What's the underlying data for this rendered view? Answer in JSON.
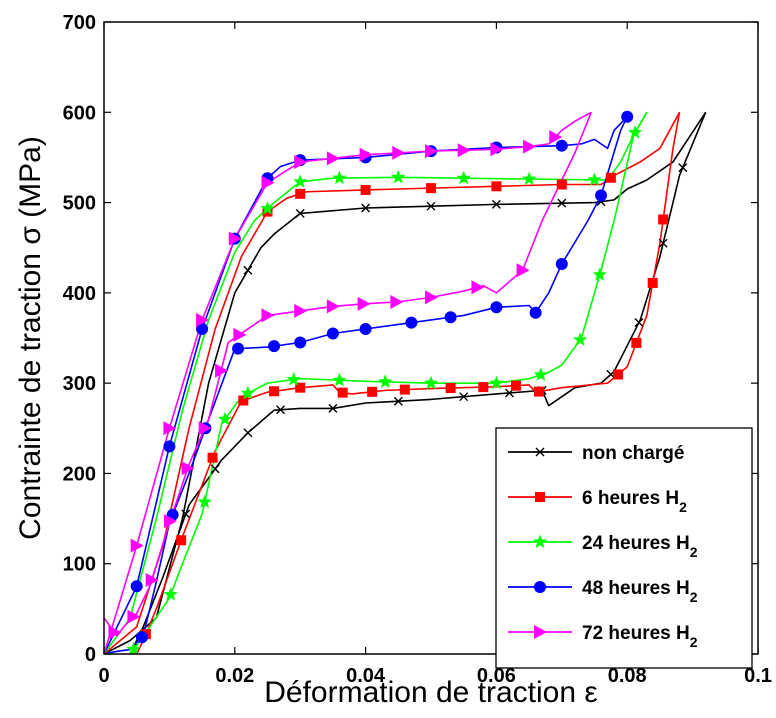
{
  "chart_data": {
    "type": "line",
    "title": "",
    "xlabel": "Déformation de traction ε",
    "ylabel": "Contrainte de traction σ (MPa)",
    "xlim": [
      0,
      0.1
    ],
    "ylim": [
      0,
      700
    ],
    "xticks": [
      0,
      0.02,
      0.04,
      0.06,
      0.08,
      0.1
    ],
    "xtick_labels": [
      "0",
      "0.02",
      "0.04",
      "0.06",
      "0.08",
      "0.1"
    ],
    "yticks": [
      0,
      100,
      200,
      300,
      400,
      500,
      600,
      700
    ],
    "ytick_labels": [
      "0",
      "100",
      "200",
      "300",
      "400",
      "500",
      "600",
      "700"
    ],
    "grid": false,
    "legend_position": "bottom-right",
    "series": [
      {
        "name": "non chargé",
        "legend_main": "non chargé",
        "legend_sub": "",
        "color": "#000000",
        "marker": "x",
        "loading": [
          [
            0,
            0
          ],
          [
            0.004,
            15
          ],
          [
            0.008,
            40
          ],
          [
            0.012,
            150
          ],
          [
            0.016,
            300
          ],
          [
            0.02,
            400
          ],
          [
            0.024,
            450
          ],
          [
            0.026,
            465
          ],
          [
            0.03,
            488
          ],
          [
            0.04,
            494
          ],
          [
            0.05,
            496
          ],
          [
            0.06,
            498
          ],
          [
            0.075,
            500
          ],
          [
            0.078,
            503
          ],
          [
            0.08,
            515
          ],
          [
            0.083,
            525
          ],
          [
            0.087,
            545
          ],
          [
            0.092,
            600
          ]
        ],
        "unloading": [
          [
            0.092,
            600
          ],
          [
            0.088,
            530
          ],
          [
            0.085,
            440
          ],
          [
            0.082,
            370
          ],
          [
            0.078,
            313
          ],
          [
            0.076,
            300
          ],
          [
            0.072,
            295
          ],
          [
            0.068,
            275
          ],
          [
            0.067,
            292
          ],
          [
            0.06,
            288
          ],
          [
            0.05,
            282
          ],
          [
            0.04,
            278
          ],
          [
            0.035,
            272
          ],
          [
            0.03,
            272
          ],
          [
            0.026,
            270
          ],
          [
            0.022,
            245
          ],
          [
            0.018,
            215
          ],
          [
            0.013,
            165
          ],
          [
            0.009,
            85
          ],
          [
            0.006,
            30
          ],
          [
            0.004,
            0
          ]
        ],
        "loading_markers": [
          0.022,
          0.03,
          0.04,
          0.05,
          0.06,
          0.07,
          0.076
        ],
        "unloading_markers": [
          0.0885,
          0.0855,
          0.0818,
          0.0775,
          0.067,
          0.062,
          0.055,
          0.045,
          0.035,
          0.027,
          0.022,
          0.017,
          0.0125
        ]
      },
      {
        "name": "6 heures H2",
        "legend_main": "6 heures H",
        "legend_sub": "2",
        "color": "#ff0000",
        "marker": "s",
        "loading": [
          [
            0,
            0
          ],
          [
            0.005,
            30
          ],
          [
            0.009,
            120
          ],
          [
            0.013,
            250
          ],
          [
            0.017,
            360
          ],
          [
            0.021,
            440
          ],
          [
            0.025,
            490
          ],
          [
            0.028,
            505
          ],
          [
            0.031,
            512
          ],
          [
            0.04,
            514
          ],
          [
            0.05,
            516
          ],
          [
            0.06,
            518
          ],
          [
            0.07,
            520
          ],
          [
            0.076,
            520
          ],
          [
            0.078,
            530
          ],
          [
            0.082,
            545
          ],
          [
            0.085,
            560
          ],
          [
            0.088,
            600
          ]
        ],
        "unloading": [
          [
            0.088,
            600
          ],
          [
            0.087,
            560
          ],
          [
            0.085,
            455
          ],
          [
            0.083,
            375
          ],
          [
            0.08,
            318
          ],
          [
            0.077,
            300
          ],
          [
            0.07,
            295
          ],
          [
            0.066,
            290
          ],
          [
            0.065,
            298
          ],
          [
            0.06,
            296
          ],
          [
            0.05,
            294
          ],
          [
            0.043,
            292
          ],
          [
            0.038,
            288
          ],
          [
            0.036,
            290
          ],
          [
            0.035,
            298
          ],
          [
            0.03,
            295
          ],
          [
            0.025,
            290
          ],
          [
            0.021,
            280
          ],
          [
            0.017,
            225
          ],
          [
            0.012,
            130
          ],
          [
            0.008,
            50
          ],
          [
            0.006,
            15
          ],
          [
            0.005,
            0
          ]
        ],
        "loading_markers": [
          0.025,
          0.03,
          0.04,
          0.05,
          0.06,
          0.07,
          0.0775
        ],
        "unloading_markers": [
          0.0855,
          0.0839,
          0.0814,
          0.0786,
          0.0665,
          0.063,
          0.058,
          0.053,
          0.046,
          0.041,
          0.0365,
          0.03,
          0.026,
          0.0213,
          0.0166,
          0.0118,
          0.0064
        ]
      },
      {
        "name": "24 heures H2",
        "legend_main": "24 heures H",
        "legend_sub": "2",
        "color": "#00ff00",
        "marker": "*",
        "loading": [
          [
            0,
            0
          ],
          [
            0.004,
            40
          ],
          [
            0.008,
            150
          ],
          [
            0.012,
            270
          ],
          [
            0.016,
            370
          ],
          [
            0.02,
            445
          ],
          [
            0.023,
            480
          ],
          [
            0.026,
            500
          ],
          [
            0.03,
            523
          ],
          [
            0.035,
            527
          ],
          [
            0.045,
            528
          ],
          [
            0.055,
            527
          ],
          [
            0.065,
            526
          ],
          [
            0.077,
            525
          ],
          [
            0.079,
            545
          ],
          [
            0.081,
            575
          ],
          [
            0.083,
            600
          ]
        ],
        "unloading": [
          [
            0.083,
            600
          ],
          [
            0.081,
            575
          ],
          [
            0.078,
            480
          ],
          [
            0.076,
            425
          ],
          [
            0.073,
            350
          ],
          [
            0.07,
            320
          ],
          [
            0.068,
            312
          ],
          [
            0.065,
            305
          ],
          [
            0.06,
            300
          ],
          [
            0.05,
            300
          ],
          [
            0.04,
            302
          ],
          [
            0.03,
            305
          ],
          [
            0.025,
            300
          ],
          [
            0.021,
            285
          ],
          [
            0.018,
            255
          ],
          [
            0.015,
            155
          ],
          [
            0.012,
            100
          ],
          [
            0.01,
            62
          ],
          [
            0.007,
            30
          ],
          [
            0.004,
            0
          ]
        ],
        "loading_markers": [
          0.025,
          0.03,
          0.036,
          0.045,
          0.055,
          0.065,
          0.075
        ],
        "unloading_markers": [
          0.0812,
          0.0758,
          0.0728,
          0.0668,
          0.06,
          0.05,
          0.043,
          0.036,
          0.029,
          0.022,
          0.0185,
          0.0154,
          0.0102,
          0.0045
        ]
      },
      {
        "name": "48 heures H2",
        "legend_main": "48 heures H",
        "legend_sub": "2",
        "color": "#0000ff",
        "marker": "o",
        "loading": [
          [
            0,
            0
          ],
          [
            0.005,
            75
          ],
          [
            0.01,
            230
          ],
          [
            0.015,
            360
          ],
          [
            0.02,
            460
          ],
          [
            0.025,
            527
          ],
          [
            0.027,
            540
          ],
          [
            0.03,
            547
          ],
          [
            0.04,
            550
          ],
          [
            0.05,
            557
          ],
          [
            0.06,
            561
          ],
          [
            0.07,
            563
          ],
          [
            0.073,
            565
          ],
          [
            0.075,
            570
          ],
          [
            0.077,
            560
          ],
          [
            0.078,
            580
          ],
          [
            0.08,
            595
          ]
        ],
        "unloading": [
          [
            0.08,
            595
          ],
          [
            0.079,
            580
          ],
          [
            0.076,
            508
          ],
          [
            0.074,
            480
          ],
          [
            0.07,
            432
          ],
          [
            0.068,
            400
          ],
          [
            0.066,
            378
          ],
          [
            0.065,
            386
          ],
          [
            0.06,
            384
          ],
          [
            0.055,
            375
          ],
          [
            0.05,
            370
          ],
          [
            0.045,
            365
          ],
          [
            0.04,
            360
          ],
          [
            0.035,
            355
          ],
          [
            0.03,
            345
          ],
          [
            0.025,
            340
          ],
          [
            0.02,
            338
          ],
          [
            0.016,
            260
          ],
          [
            0.013,
            200
          ],
          [
            0.01,
            145
          ],
          [
            0.008,
            80
          ],
          [
            0.006,
            20
          ],
          [
            0.004,
            5
          ],
          [
            0.002,
            3
          ],
          [
            0,
            0
          ]
        ],
        "loading_markers": [
          0.005,
          0.01,
          0.015,
          0.02,
          0.025,
          0.03,
          0.04,
          0.05,
          0.06,
          0.07,
          0.08
        ],
        "unloading_markers": [
          0.076,
          0.07,
          0.066,
          0.06,
          0.053,
          0.047,
          0.04,
          0.035,
          0.03,
          0.026,
          0.0205,
          0.0155,
          0.0105,
          0.0058
        ]
      },
      {
        "name": "72 heures H2",
        "legend_main": "72 heures H",
        "legend_sub": "2",
        "color": "#ff00ff",
        "marker": ">",
        "loading": [
          [
            0,
            0
          ],
          [
            0.005,
            120
          ],
          [
            0.01,
            250
          ],
          [
            0.015,
            370
          ],
          [
            0.02,
            460
          ],
          [
            0.025,
            522
          ],
          [
            0.03,
            545
          ],
          [
            0.04,
            553
          ],
          [
            0.05,
            557
          ],
          [
            0.06,
            559
          ],
          [
            0.065,
            562
          ],
          [
            0.068,
            565
          ],
          [
            0.07,
            580
          ],
          [
            0.072,
            590
          ],
          [
            0.0745,
            600
          ]
        ],
        "unloading": [
          [
            0.0745,
            600
          ],
          [
            0.072,
            555
          ],
          [
            0.067,
            480
          ],
          [
            0.064,
            425
          ],
          [
            0.06,
            400
          ],
          [
            0.058,
            408
          ],
          [
            0.055,
            402
          ],
          [
            0.05,
            395
          ],
          [
            0.045,
            390
          ],
          [
            0.04,
            388
          ],
          [
            0.035,
            385
          ],
          [
            0.03,
            380
          ],
          [
            0.025,
            375
          ],
          [
            0.022,
            360
          ],
          [
            0.019,
            345
          ],
          [
            0.016,
            260
          ],
          [
            0.013,
            210
          ],
          [
            0.01,
            145
          ],
          [
            0.007,
            75
          ],
          [
            0.005,
            45
          ],
          [
            0.003,
            30
          ],
          [
            0.002,
            20
          ],
          [
            0,
            40
          ]
        ],
        "loading_markers": [
          0.005,
          0.01,
          0.015,
          0.02,
          0.025,
          0.03,
          0.035,
          0.04,
          0.045,
          0.05,
          0.055,
          0.06,
          0.065,
          0.069
        ],
        "unloading_markers": [
          0.064,
          0.0571,
          0.05,
          0.0447,
          0.0397,
          0.035,
          0.03,
          0.025,
          0.0207,
          0.0179,
          0.0154,
          0.0128,
          0.0101,
          0.0073,
          0.0045,
          0.0016
        ]
      }
    ]
  }
}
